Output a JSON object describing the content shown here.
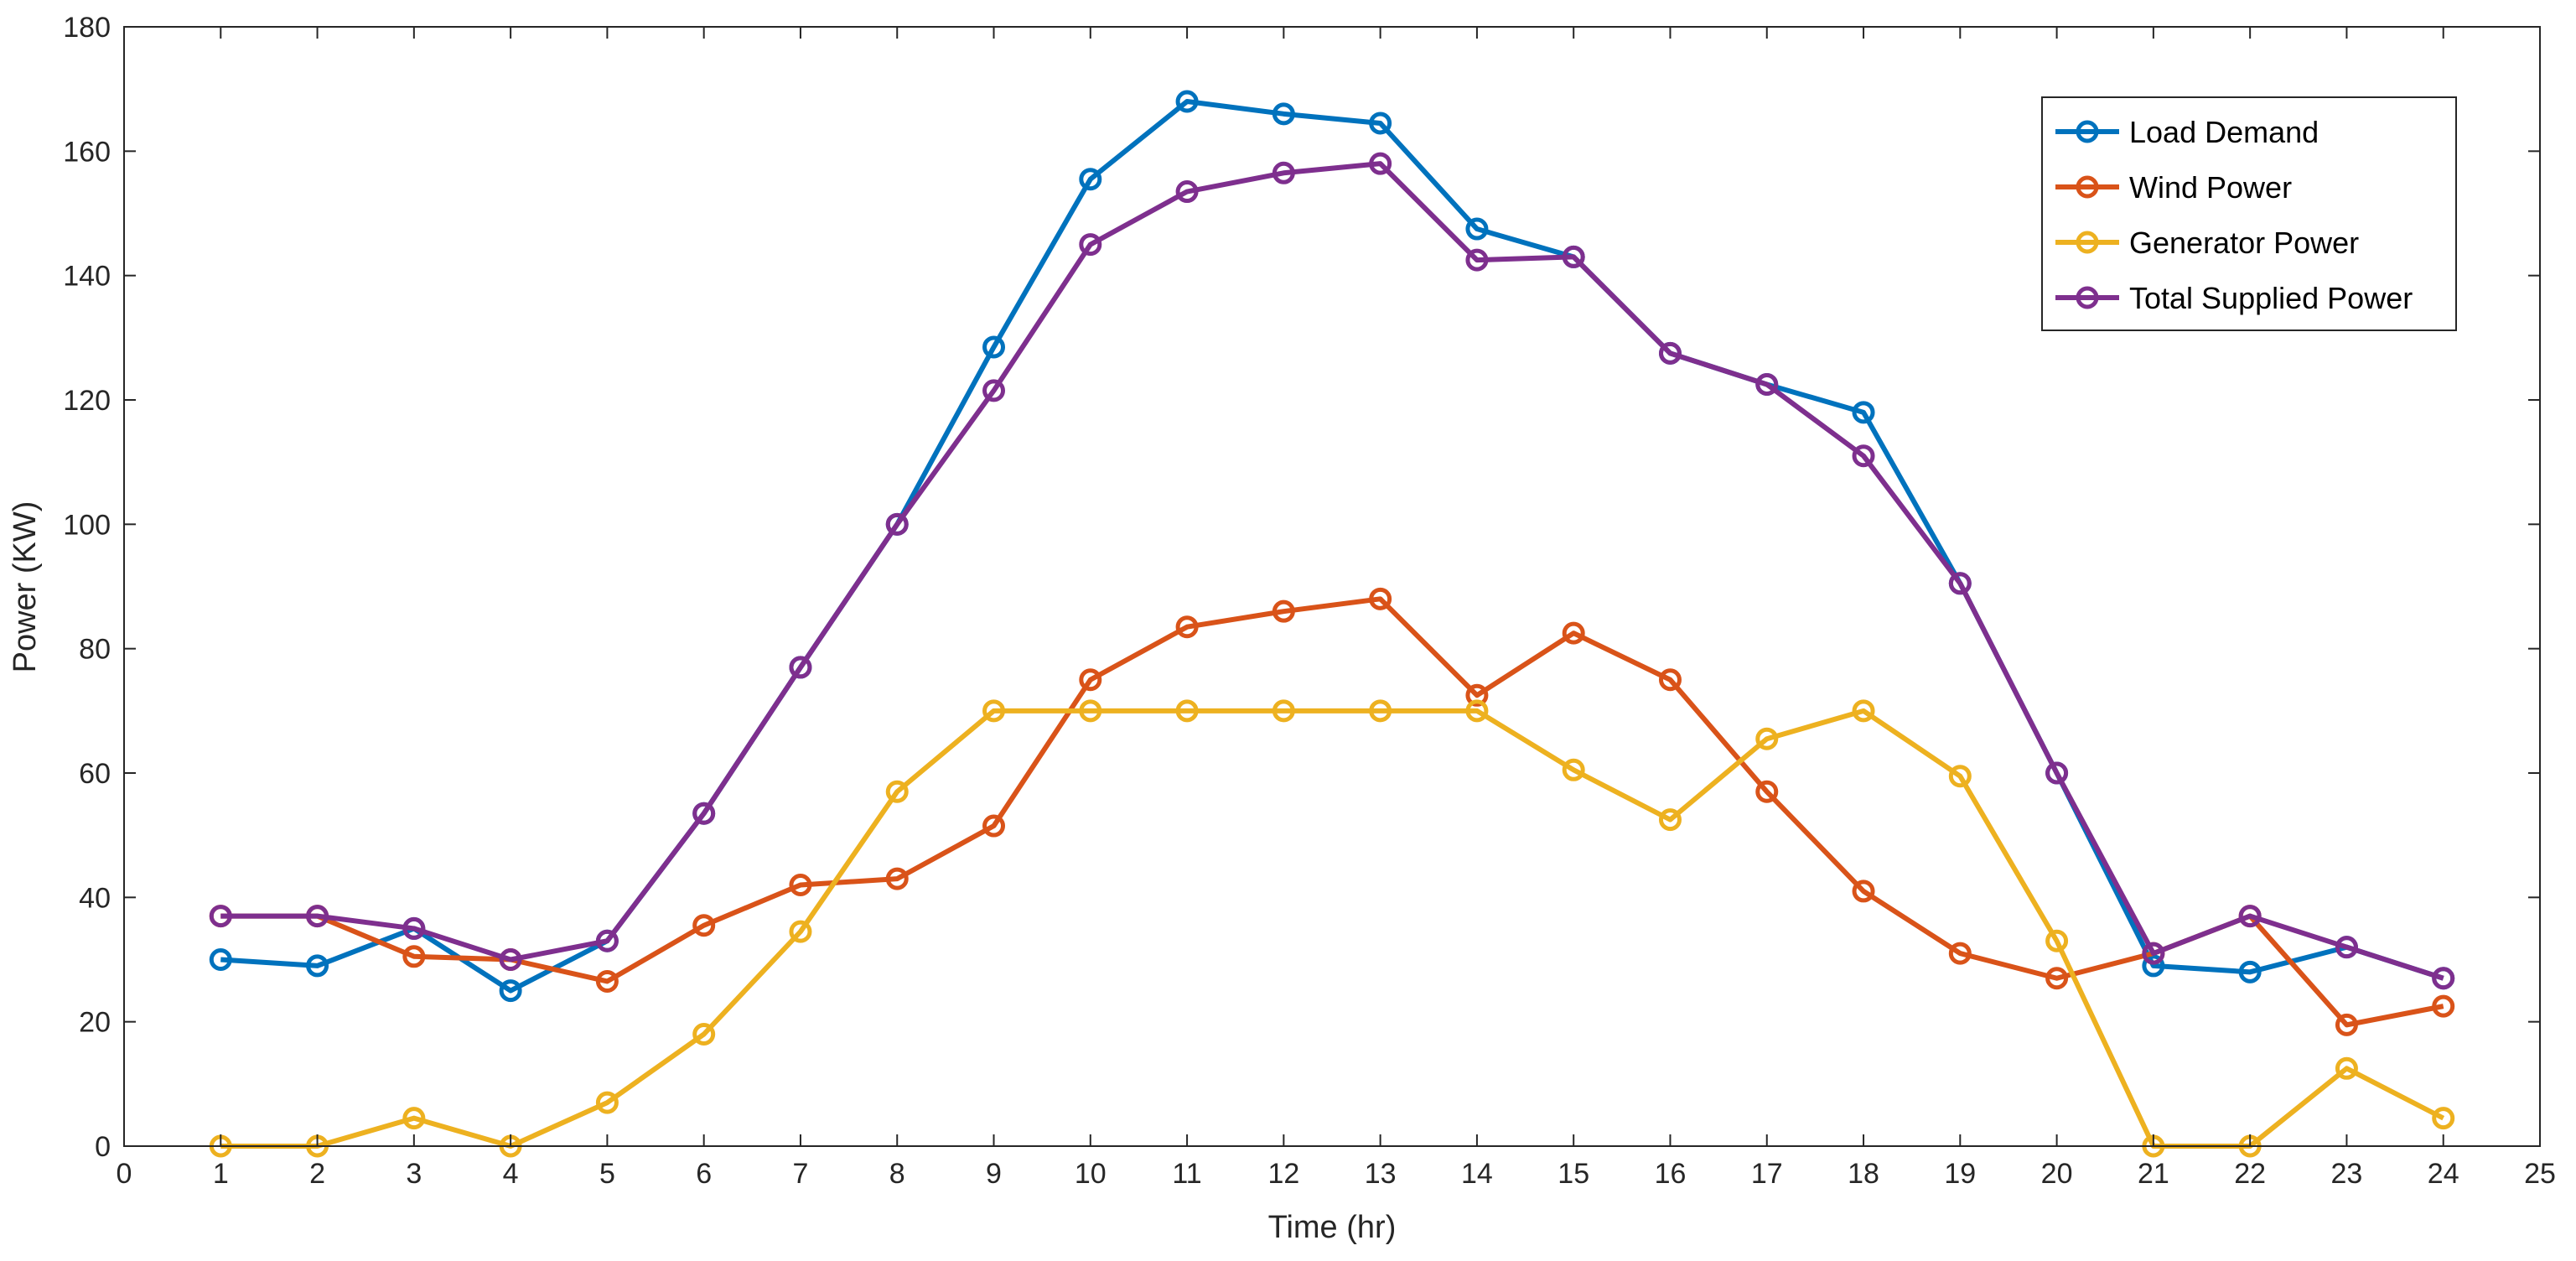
{
  "chart_data": {
    "type": "line",
    "title": "",
    "xlabel": "Time (hr)",
    "ylabel": "Power (KW)",
    "xlim": [
      0,
      25
    ],
    "ylim": [
      0,
      180
    ],
    "xticks": [
      0,
      1,
      2,
      3,
      4,
      5,
      6,
      7,
      8,
      9,
      10,
      11,
      12,
      13,
      14,
      15,
      16,
      17,
      18,
      19,
      20,
      21,
      22,
      23,
      24,
      25
    ],
    "yticks": [
      0,
      20,
      40,
      60,
      80,
      100,
      120,
      140,
      160,
      180
    ],
    "grid": false,
    "legend_position": "top-right",
    "marker": "open-circle",
    "x": [
      1,
      2,
      3,
      4,
      5,
      6,
      7,
      8,
      9,
      10,
      11,
      12,
      13,
      14,
      15,
      16,
      17,
      18,
      19,
      20,
      21,
      22,
      23,
      24
    ],
    "series": [
      {
        "name": "Load Demand",
        "color": "#0072BD",
        "values": [
          30,
          29,
          35,
          25,
          33,
          53.5,
          77,
          100,
          128.5,
          155.5,
          168,
          166,
          164.5,
          147.5,
          143,
          127.5,
          122.5,
          118,
          90.5,
          60,
          29,
          28,
          32,
          27
        ]
      },
      {
        "name": "Wind Power",
        "color": "#D95319",
        "values": [
          37,
          37,
          30.5,
          30,
          26.5,
          35.5,
          42,
          43,
          51.5,
          75,
          83.5,
          86,
          88,
          72.5,
          82.5,
          75,
          57,
          41,
          31,
          27,
          31,
          37,
          19.5,
          22.5
        ]
      },
      {
        "name": "Generator Power",
        "color": "#EDB120",
        "values": [
          0,
          0,
          4.5,
          0,
          7,
          18,
          34.5,
          57,
          70,
          70,
          70,
          70,
          70,
          70,
          60.5,
          52.5,
          65.5,
          70,
          59.5,
          33,
          0,
          0,
          12.5,
          4.5
        ]
      },
      {
        "name": "Total Supplied Power",
        "color": "#7E2F8E",
        "values": [
          37,
          37,
          35,
          30,
          33,
          53.5,
          77,
          100,
          121.5,
          145,
          153.5,
          156.5,
          158,
          142.5,
          143,
          127.5,
          122.5,
          111,
          90.5,
          60,
          31,
          37,
          32,
          27
        ]
      }
    ]
  }
}
